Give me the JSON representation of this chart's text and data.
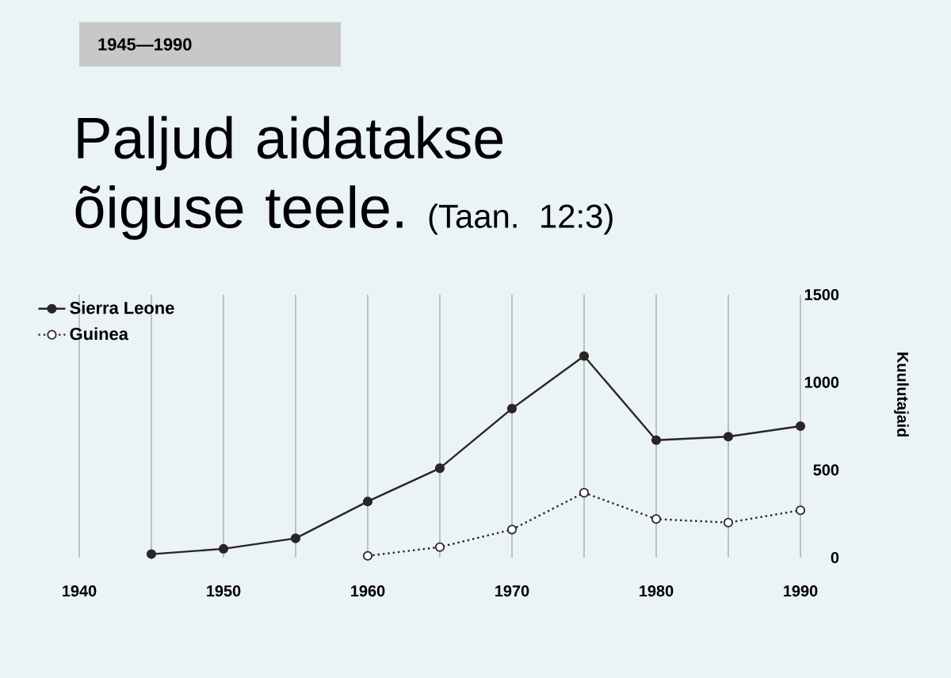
{
  "chart_data": {
    "type": "line",
    "title": "Paljud aidatakse õiguse teele.",
    "subtitle": "(Taan. 12:3)",
    "ylabel": "Kuulutajaid",
    "annotations": [
      "1945—1990"
    ],
    "xlim": [
      1940,
      1990
    ],
    "xticks": [
      1940,
      {
        "value": 1945,
        "label": null
      },
      1950,
      {
        "value": 1955,
        "label": null
      },
      1960,
      {
        "value": 1965,
        "label": null
      },
      1970,
      {
        "value": 1975,
        "label": null
      },
      1980,
      {
        "value": 1985,
        "label": null
      },
      1990
    ],
    "ylim": [
      0,
      1500
    ],
    "yticks": [
      0,
      500,
      1000,
      1500
    ],
    "grid": "x",
    "legend": "top left",
    "marker": "circle",
    "series": [
      {
        "name": "Sierra Leone",
        "color": "#2b2523",
        "line_style": "solid",
        "x": [
          1945,
          1950,
          1955,
          1960,
          1965,
          1970,
          1975,
          1980,
          1985,
          1990
        ],
        "values": [
          20,
          50,
          110,
          320,
          510,
          850,
          1150,
          670,
          690,
          750
        ]
      },
      {
        "name": "Guinea",
        "color": "#2b2523",
        "line_style": "dotted",
        "x": [
          1960,
          1965,
          1970,
          1975,
          1980,
          1985,
          1990
        ],
        "values": [
          10,
          60,
          160,
          370,
          220,
          200,
          270
        ]
      }
    ]
  }
}
